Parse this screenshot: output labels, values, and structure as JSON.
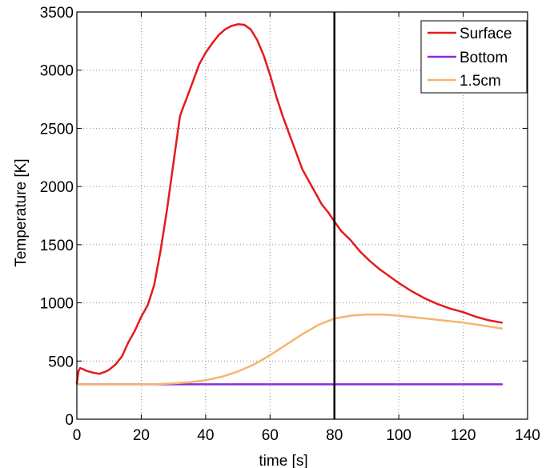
{
  "chart_data": {
    "type": "line",
    "title": "",
    "xlabel": "time [s]",
    "ylabel": "Temperature [K]",
    "xlim": [
      0,
      140
    ],
    "ylim": [
      0,
      3500
    ],
    "xticks": [
      0,
      20,
      40,
      60,
      80,
      100,
      120,
      140
    ],
    "yticks": [
      0,
      500,
      1000,
      1500,
      2000,
      2500,
      3000,
      3500
    ],
    "xtick_labels": [
      "0",
      "20",
      "40",
      "60",
      "80",
      "100",
      "120",
      "140"
    ],
    "ytick_labels": [
      "0",
      "500",
      "1000",
      "1500",
      "2000",
      "2500",
      "3000",
      "3500"
    ],
    "grid": true,
    "legend_position": "top-right",
    "vertical_line": {
      "x": 80,
      "color": "#000000"
    },
    "series": [
      {
        "name": "Surface",
        "color": "#e41a1c",
        "x": [
          0,
          0.5,
          1,
          2,
          3,
          5,
          7,
          8,
          9,
          10,
          12,
          14,
          16,
          18,
          20,
          22,
          24,
          26,
          28,
          30,
          32,
          33,
          34,
          36,
          38,
          40,
          42,
          44,
          46,
          48,
          50,
          52,
          54,
          56,
          58,
          60,
          62,
          64,
          66,
          68,
          70,
          72,
          74,
          76,
          78,
          80,
          82,
          85,
          88,
          91,
          94,
          97,
          100,
          104,
          108,
          112,
          116,
          120,
          124,
          128,
          132
        ],
        "y": [
          310,
          410,
          440,
          430,
          415,
          400,
          390,
          400,
          410,
          425,
          470,
          540,
          660,
          760,
          880,
          980,
          1150,
          1450,
          1800,
          2200,
          2600,
          2680,
          2750,
          2900,
          3050,
          3150,
          3230,
          3300,
          3350,
          3380,
          3395,
          3390,
          3350,
          3260,
          3130,
          2960,
          2770,
          2600,
          2450,
          2300,
          2150,
          2050,
          1950,
          1850,
          1780,
          1700,
          1620,
          1540,
          1440,
          1360,
          1290,
          1230,
          1170,
          1100,
          1040,
          990,
          950,
          920,
          880,
          850,
          830
        ]
      },
      {
        "name": "Bottom",
        "color": "#8a2be2",
        "x": [
          0,
          132
        ],
        "y": [
          300,
          300
        ]
      },
      {
        "name": "1.5cm",
        "color": "#f5b56e",
        "x": [
          0,
          10,
          20,
          25,
          30,
          35,
          40,
          45,
          50,
          55,
          60,
          65,
          70,
          75,
          80,
          85,
          90,
          95,
          100,
          105,
          110,
          115,
          120,
          125,
          132
        ],
        "y": [
          300,
          300,
          300,
          302,
          308,
          318,
          335,
          365,
          410,
          470,
          550,
          640,
          730,
          810,
          865,
          890,
          900,
          900,
          890,
          875,
          860,
          845,
          830,
          810,
          780
        ]
      }
    ]
  }
}
